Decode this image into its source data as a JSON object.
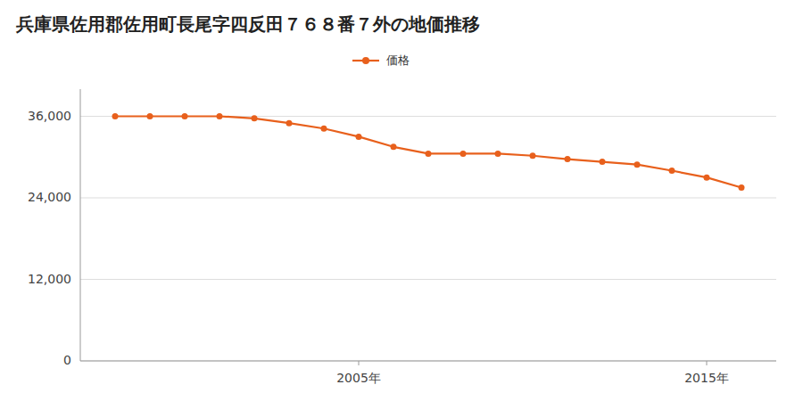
{
  "chart_data": {
    "type": "line",
    "title": "兵庫県佐用郡佐用町長尾字四反田７６８番７外の地価推移",
    "x": [
      1998,
      1999,
      2000,
      2001,
      2002,
      2003,
      2004,
      2005,
      2006,
      2007,
      2008,
      2009,
      2010,
      2011,
      2012,
      2013,
      2014,
      2015,
      2016
    ],
    "series": [
      {
        "name": "価格",
        "color": "#E8601C",
        "marker": "circle",
        "values": [
          36000,
          36000,
          36000,
          36000,
          35700,
          35000,
          34200,
          33000,
          31500,
          30500,
          30500,
          30500,
          30200,
          29700,
          29300,
          28900,
          28000,
          27000,
          25500
        ]
      }
    ],
    "xlim": [
      1997,
      2017
    ],
    "xticks": [
      {
        "value": 2005,
        "label": "2005年"
      },
      {
        "value": 2015,
        "label": "2015年"
      }
    ],
    "ylim": [
      0,
      40000
    ],
    "yticks": [
      0,
      {
        "value": 12000,
        "label": "12,000"
      },
      {
        "value": 24000,
        "label": "24,000"
      },
      {
        "value": 36000,
        "label": "36,000"
      }
    ],
    "grid": true,
    "legend": "top"
  }
}
